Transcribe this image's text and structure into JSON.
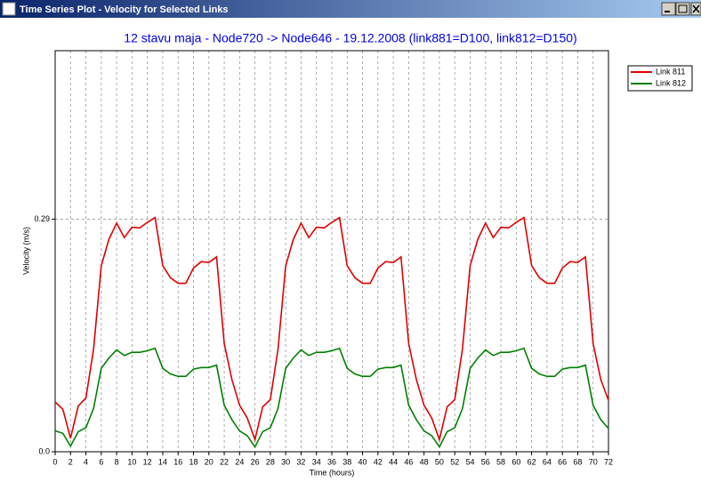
{
  "window": {
    "title": "Time Series Plot - Velocity for Selected Links"
  },
  "chart_data": {
    "type": "line",
    "title": "12 stavu maja - Node720 -> Node646 - 19.12.2008 (link881=D100, link812=D150)",
    "x_label": "Time (hours)",
    "y_label": "Velocity (m/s)",
    "x": [
      0,
      1,
      2,
      3,
      4,
      5,
      6,
      7,
      8,
      9,
      10,
      11,
      12,
      13,
      14,
      15,
      16,
      17,
      18,
      19,
      20,
      21,
      22,
      23,
      24,
      25,
      26,
      27,
      28,
      29,
      30,
      31,
      32,
      33,
      34,
      35,
      36,
      37,
      38,
      39,
      40,
      41,
      42,
      43,
      44,
      45,
      46,
      47,
      48,
      49,
      50,
      51,
      52,
      53,
      54,
      55,
      56,
      57,
      58,
      59,
      60,
      61,
      62,
      63,
      64,
      65,
      66,
      67,
      68,
      69,
      70,
      71,
      72
    ],
    "xlim": [
      0,
      72
    ],
    "xticks": [
      0,
      2,
      4,
      6,
      8,
      10,
      12,
      14,
      16,
      18,
      20,
      22,
      24,
      26,
      28,
      30,
      32,
      34,
      36,
      38,
      40,
      42,
      44,
      46,
      48,
      50,
      52,
      54,
      56,
      58,
      60,
      62,
      64,
      66,
      68,
      70,
      72
    ],
    "ylim": [
      0,
      0.5
    ],
    "yticks": [
      {
        "value": 0,
        "label": "0.0"
      },
      0.29
    ],
    "grid": true,
    "series": [
      {
        "name": "Link 811",
        "color": "#e00000",
        "values": [
          0.062,
          0.053,
          0.017,
          0.057,
          0.067,
          0.128,
          0.232,
          0.265,
          0.285,
          0.267,
          0.28,
          0.279,
          0.286,
          0.292,
          0.232,
          0.217,
          0.21,
          0.21,
          0.229,
          0.237,
          0.236,
          0.243,
          0.135,
          0.09,
          0.058,
          0.042,
          0.015,
          0.056,
          0.065,
          0.128,
          0.232,
          0.265,
          0.285,
          0.267,
          0.28,
          0.279,
          0.286,
          0.292,
          0.232,
          0.217,
          0.21,
          0.21,
          0.229,
          0.237,
          0.236,
          0.243,
          0.135,
          0.09,
          0.058,
          0.042,
          0.015,
          0.056,
          0.065,
          0.128,
          0.232,
          0.265,
          0.285,
          0.267,
          0.28,
          0.279,
          0.286,
          0.292,
          0.232,
          0.217,
          0.21,
          0.21,
          0.229,
          0.237,
          0.236,
          0.243,
          0.135,
          0.09,
          0.064
        ]
      },
      {
        "name": "Link 812",
        "color": "#008000",
        "values": [
          0.026,
          0.023,
          0.007,
          0.025,
          0.03,
          0.054,
          0.104,
          0.117,
          0.127,
          0.12,
          0.124,
          0.124,
          0.126,
          0.129,
          0.104,
          0.097,
          0.094,
          0.094,
          0.103,
          0.105,
          0.105,
          0.108,
          0.058,
          0.04,
          0.026,
          0.02,
          0.006,
          0.025,
          0.03,
          0.054,
          0.104,
          0.117,
          0.127,
          0.12,
          0.124,
          0.124,
          0.126,
          0.129,
          0.104,
          0.097,
          0.094,
          0.094,
          0.103,
          0.105,
          0.105,
          0.108,
          0.058,
          0.04,
          0.026,
          0.02,
          0.006,
          0.025,
          0.03,
          0.054,
          0.104,
          0.117,
          0.127,
          0.12,
          0.124,
          0.124,
          0.126,
          0.129,
          0.104,
          0.097,
          0.094,
          0.094,
          0.103,
          0.105,
          0.105,
          0.108,
          0.058,
          0.04,
          0.029
        ]
      }
    ]
  }
}
